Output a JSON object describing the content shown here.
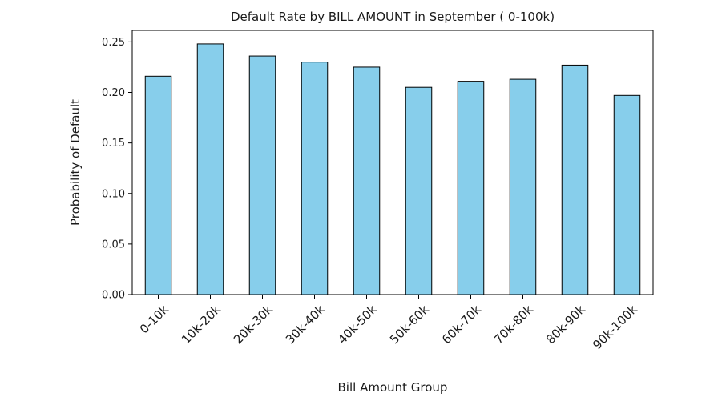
{
  "chart_data": {
    "type": "bar",
    "title": "Default Rate by BILL AMOUNT in September ( 0-100k)",
    "xlabel": "Bill Amount Group",
    "ylabel": "Probability of Default",
    "categories": [
      "0-10k",
      "10k-20k",
      "20k-30k",
      "30k-40k",
      "40k-50k",
      "50k-60k",
      "60k-70k",
      "70k-80k",
      "80k-90k",
      "90k-100k"
    ],
    "values": [
      0.216,
      0.248,
      0.236,
      0.23,
      0.225,
      0.205,
      0.211,
      0.213,
      0.227,
      0.197
    ],
    "ylim": [
      0,
      0.2614
    ],
    "yticks": [
      0.0,
      0.05,
      0.1,
      0.15,
      0.2,
      0.25
    ],
    "ytick_labels": [
      "0.00",
      "0.05",
      "0.10",
      "0.15",
      "0.20",
      "0.25"
    ],
    "bar_color": "#87CEEB",
    "edge_color": "#000000",
    "grid": false,
    "legend": "none"
  }
}
